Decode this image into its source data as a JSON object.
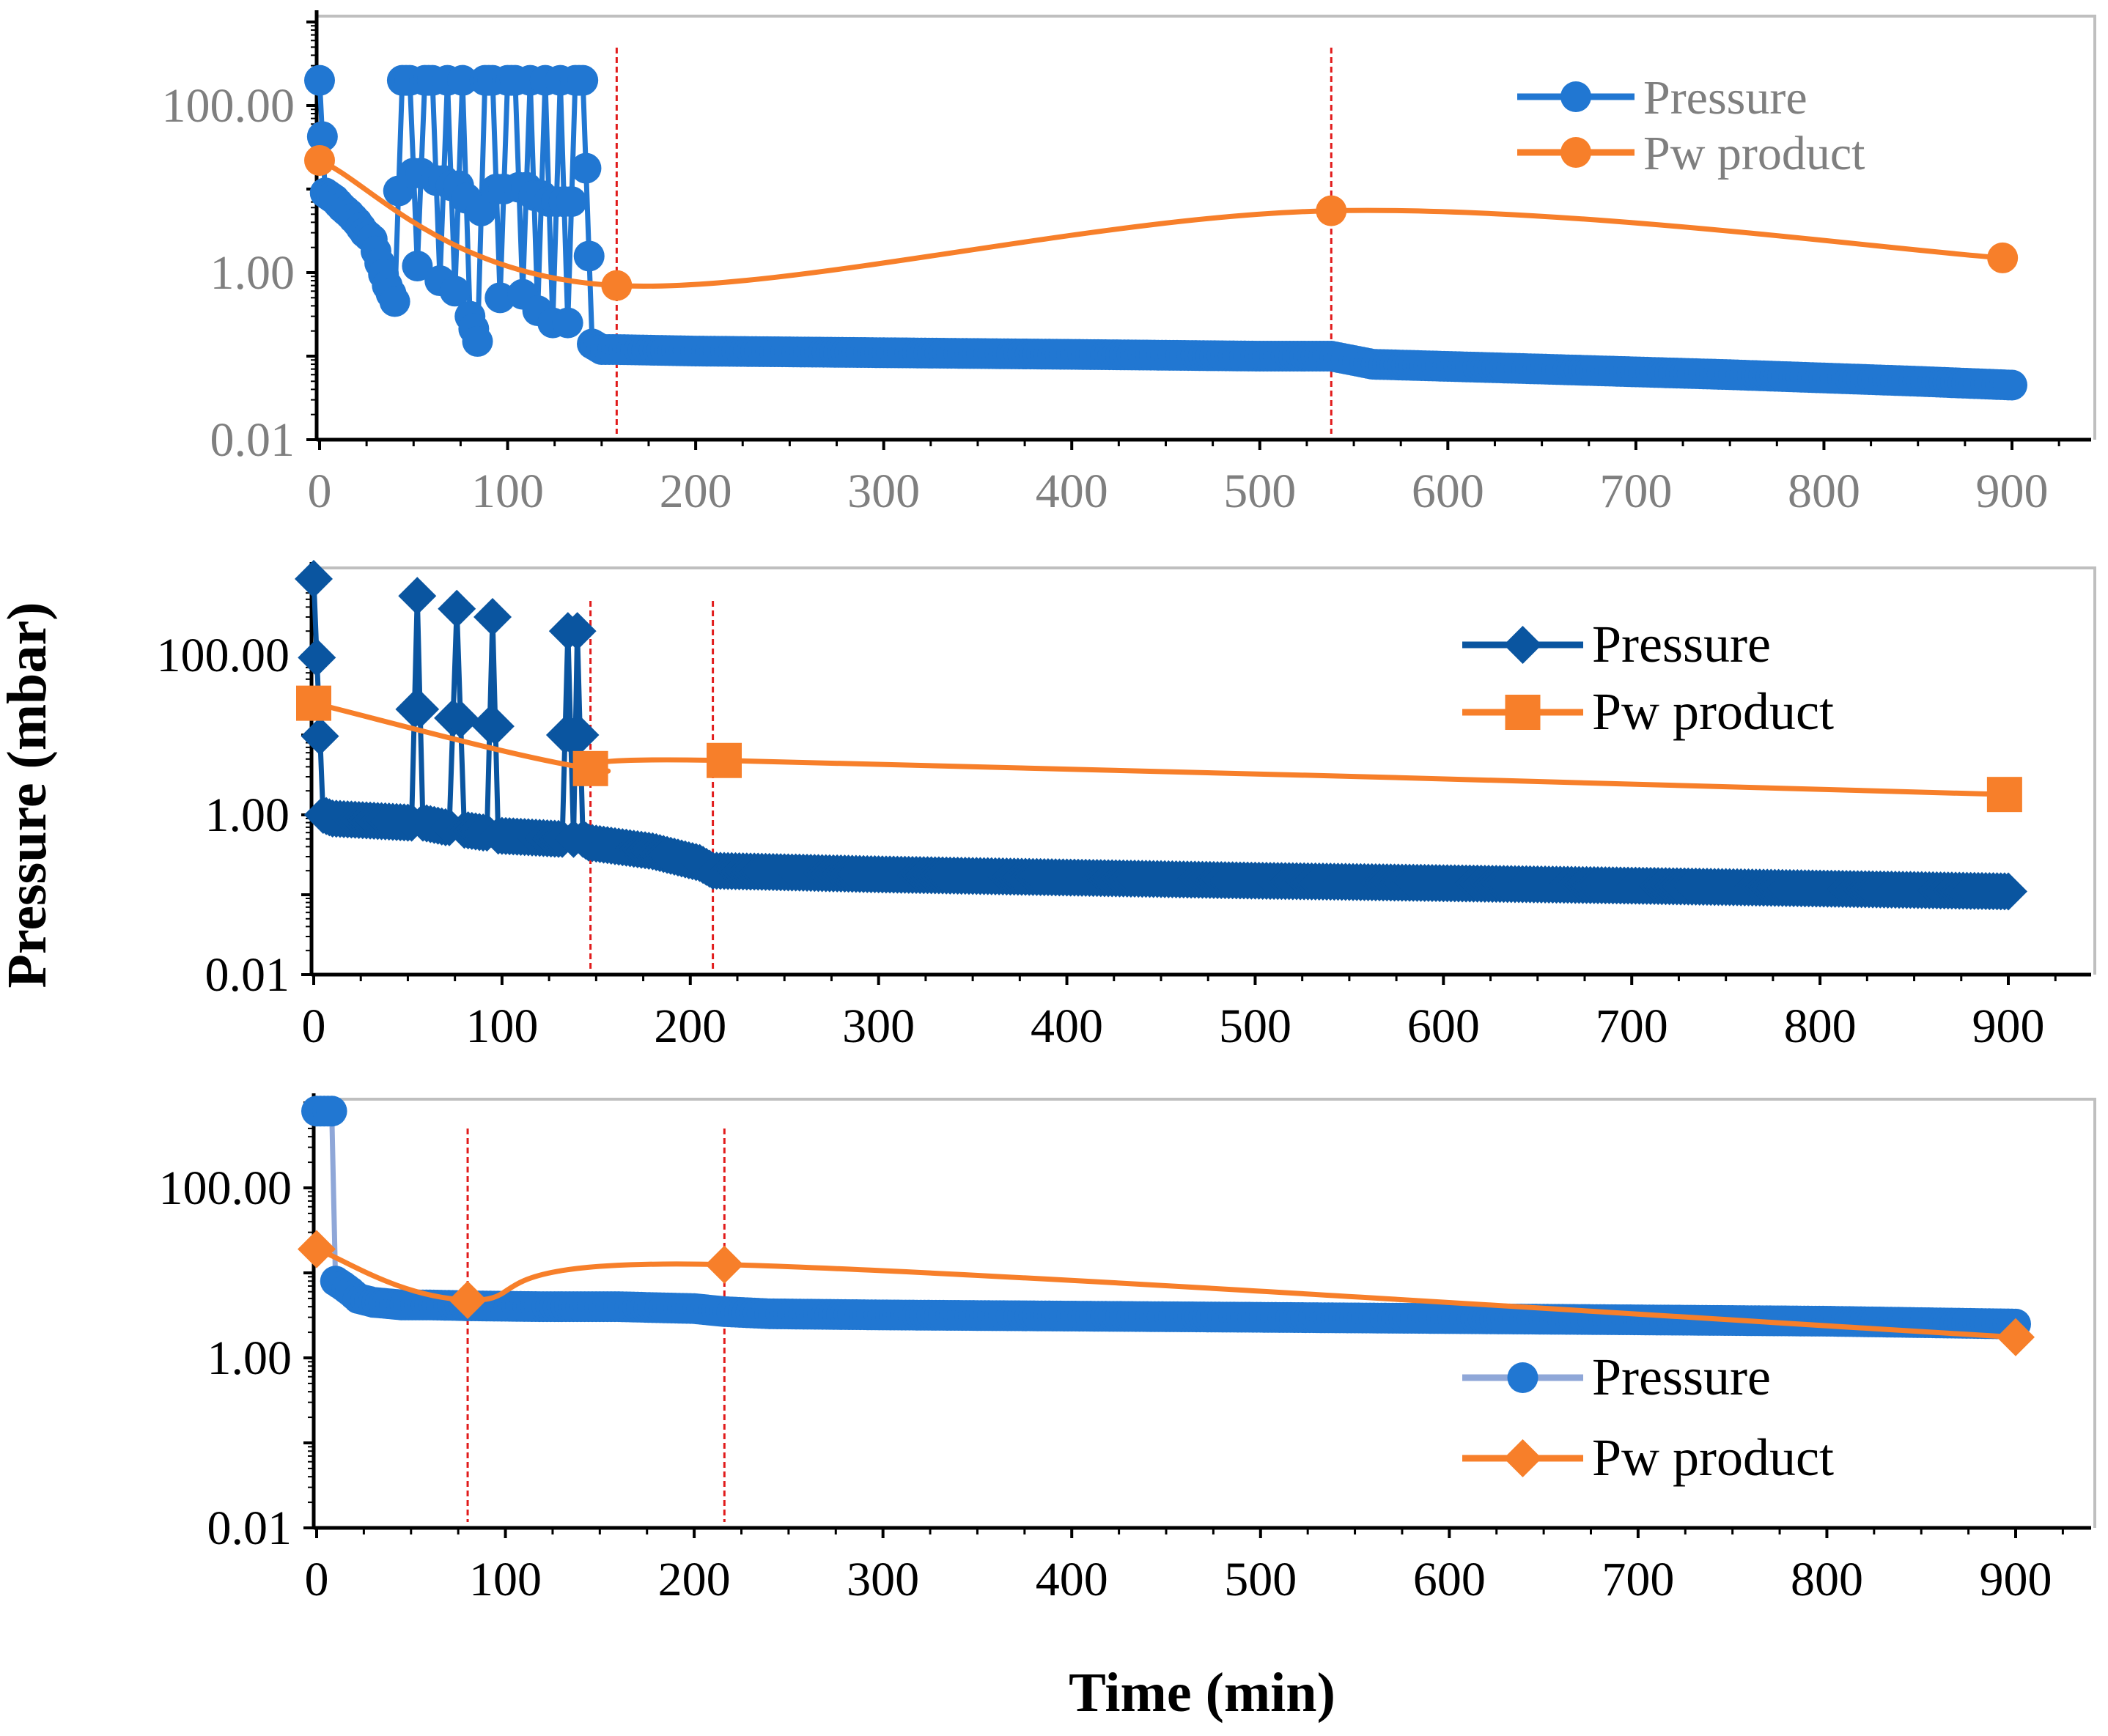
{
  "figure": {
    "ylabel": "Pressure (mbar)",
    "xlabel": "Time (min)"
  },
  "chart_data": [
    {
      "type": "line",
      "title": "",
      "yscale": "log",
      "ylim": [
        0.01,
        1000
      ],
      "xlim": [
        0,
        940
      ],
      "xticks": [
        "0",
        "100",
        "200",
        "300",
        "400",
        "500",
        "600",
        "700",
        "800",
        "900"
      ],
      "yticks": [
        "0.01",
        "1.00",
        "100.00"
      ],
      "tick_color": "#7f7f7f",
      "legend": {
        "position": "top-right"
      },
      "vlines": [
        158,
        538
      ],
      "vline_color": "#e11b1b",
      "series": [
        {
          "name": "Pressure",
          "color": "#2177d2",
          "marker": "circle",
          "x": [
            0,
            3,
            8,
            12,
            16,
            20,
            24,
            28,
            32,
            36,
            40,
            44,
            48,
            52,
            56,
            60,
            64,
            68,
            72,
            76,
            80,
            84,
            88,
            92,
            96,
            100,
            104,
            108,
            112,
            116,
            120,
            124,
            128,
            132,
            136,
            140,
            145,
            150,
            158,
            200,
            300,
            400,
            500,
            538,
            560,
            650,
            750,
            850,
            900
          ],
          "y": [
            200,
            9,
            7.5,
            6,
            5,
            4,
            3,
            2.5,
            1.3,
            0.7,
            0.45,
            200,
            200,
            1.2,
            200,
            200,
            0.8,
            200,
            0.6,
            200,
            0.3,
            0.15,
            200,
            200,
            0.5,
            200,
            200,
            0.55,
            200,
            0.35,
            200,
            0.25,
            200,
            0.25,
            200,
            200,
            0.14,
            0.12,
            0.12,
            0.115,
            0.11,
            0.105,
            0.1,
            0.1,
            0.08,
            0.07,
            0.06,
            0.05,
            0.045
          ]
        },
        {
          "name": "Pw product",
          "color": "#f77f2a",
          "marker": "circle",
          "x": [
            0,
            158,
            538,
            895
          ],
          "y": [
            22,
            0.7,
            5.5,
            1.5
          ]
        }
      ]
    },
    {
      "type": "line",
      "title": "",
      "yscale": "log",
      "ylim": [
        0.01,
        1000
      ],
      "xlim": [
        0,
        940
      ],
      "xticks": [
        "0",
        "100",
        "200",
        "300",
        "400",
        "500",
        "600",
        "700",
        "800",
        "900"
      ],
      "yticks": [
        "0.01",
        "1.00",
        "100.00"
      ],
      "tick_color": "#000000",
      "legend": {
        "position": "top-right"
      },
      "vlines": [
        147,
        212
      ],
      "vline_color": "#e11b1b",
      "series": [
        {
          "name": "Pressure",
          "color": "#0a55a0",
          "marker": "diamond",
          "x": [
            0,
            5,
            10,
            50,
            52,
            55,
            58,
            70,
            72,
            76,
            80,
            90,
            92,
            95,
            98,
            130,
            132,
            135,
            138,
            140,
            143,
            146,
            180,
            205,
            212,
            300,
            500,
            700,
            900
          ],
          "y": [
            900,
            1.0,
            0.9,
            0.8,
            0.8,
            550,
            0.8,
            0.7,
            0.7,
            380,
            0.65,
            0.6,
            0.6,
            300,
            0.55,
            0.5,
            0.5,
            200,
            0.5,
            200,
            0.5,
            0.45,
            0.35,
            0.25,
            0.2,
            0.18,
            0.15,
            0.13,
            0.11
          ]
        },
        {
          "name": "Pw product",
          "color": "#f77f2a",
          "marker": "square",
          "x": [
            0,
            147,
            218,
            898
          ],
          "y": [
            25,
            3.8,
            4.8,
            1.8
          ]
        }
      ]
    },
    {
      "type": "line",
      "title": "",
      "yscale": "log",
      "ylim": [
        0.01,
        1000
      ],
      "xlim": [
        0,
        940
      ],
      "xticks": [
        "0",
        "100",
        "200",
        "300",
        "400",
        "500",
        "600",
        "700",
        "800",
        "900"
      ],
      "yticks": [
        "0.01",
        "1.00",
        "100.00"
      ],
      "tick_color": "#000000",
      "legend": {
        "position": "bottom-right"
      },
      "vlines": [
        80,
        216
      ],
      "vline_color": "#e11b1b",
      "series": [
        {
          "name": "Pressure",
          "color": "#2177d2",
          "line_color": "#8fa7d8",
          "marker": "circle",
          "x": [
            0,
            8,
            10,
            14,
            18,
            22,
            30,
            45,
            60,
            80,
            120,
            160,
            200,
            216,
            240,
            300,
            400,
            500,
            600,
            700,
            800,
            900
          ],
          "y": [
            800,
            800,
            8,
            7,
            6,
            5,
            4.5,
            4.2,
            4.2,
            4.1,
            4.0,
            4.0,
            3.8,
            3.5,
            3.3,
            3.2,
            3.1,
            3.0,
            2.9,
            2.8,
            2.7,
            2.5
          ]
        },
        {
          "name": "Pw product",
          "color": "#f77f2a",
          "marker": "diamond",
          "x": [
            0,
            80,
            216,
            900
          ],
          "y": [
            19,
            4.8,
            12.5,
            1.75
          ]
        }
      ]
    }
  ]
}
